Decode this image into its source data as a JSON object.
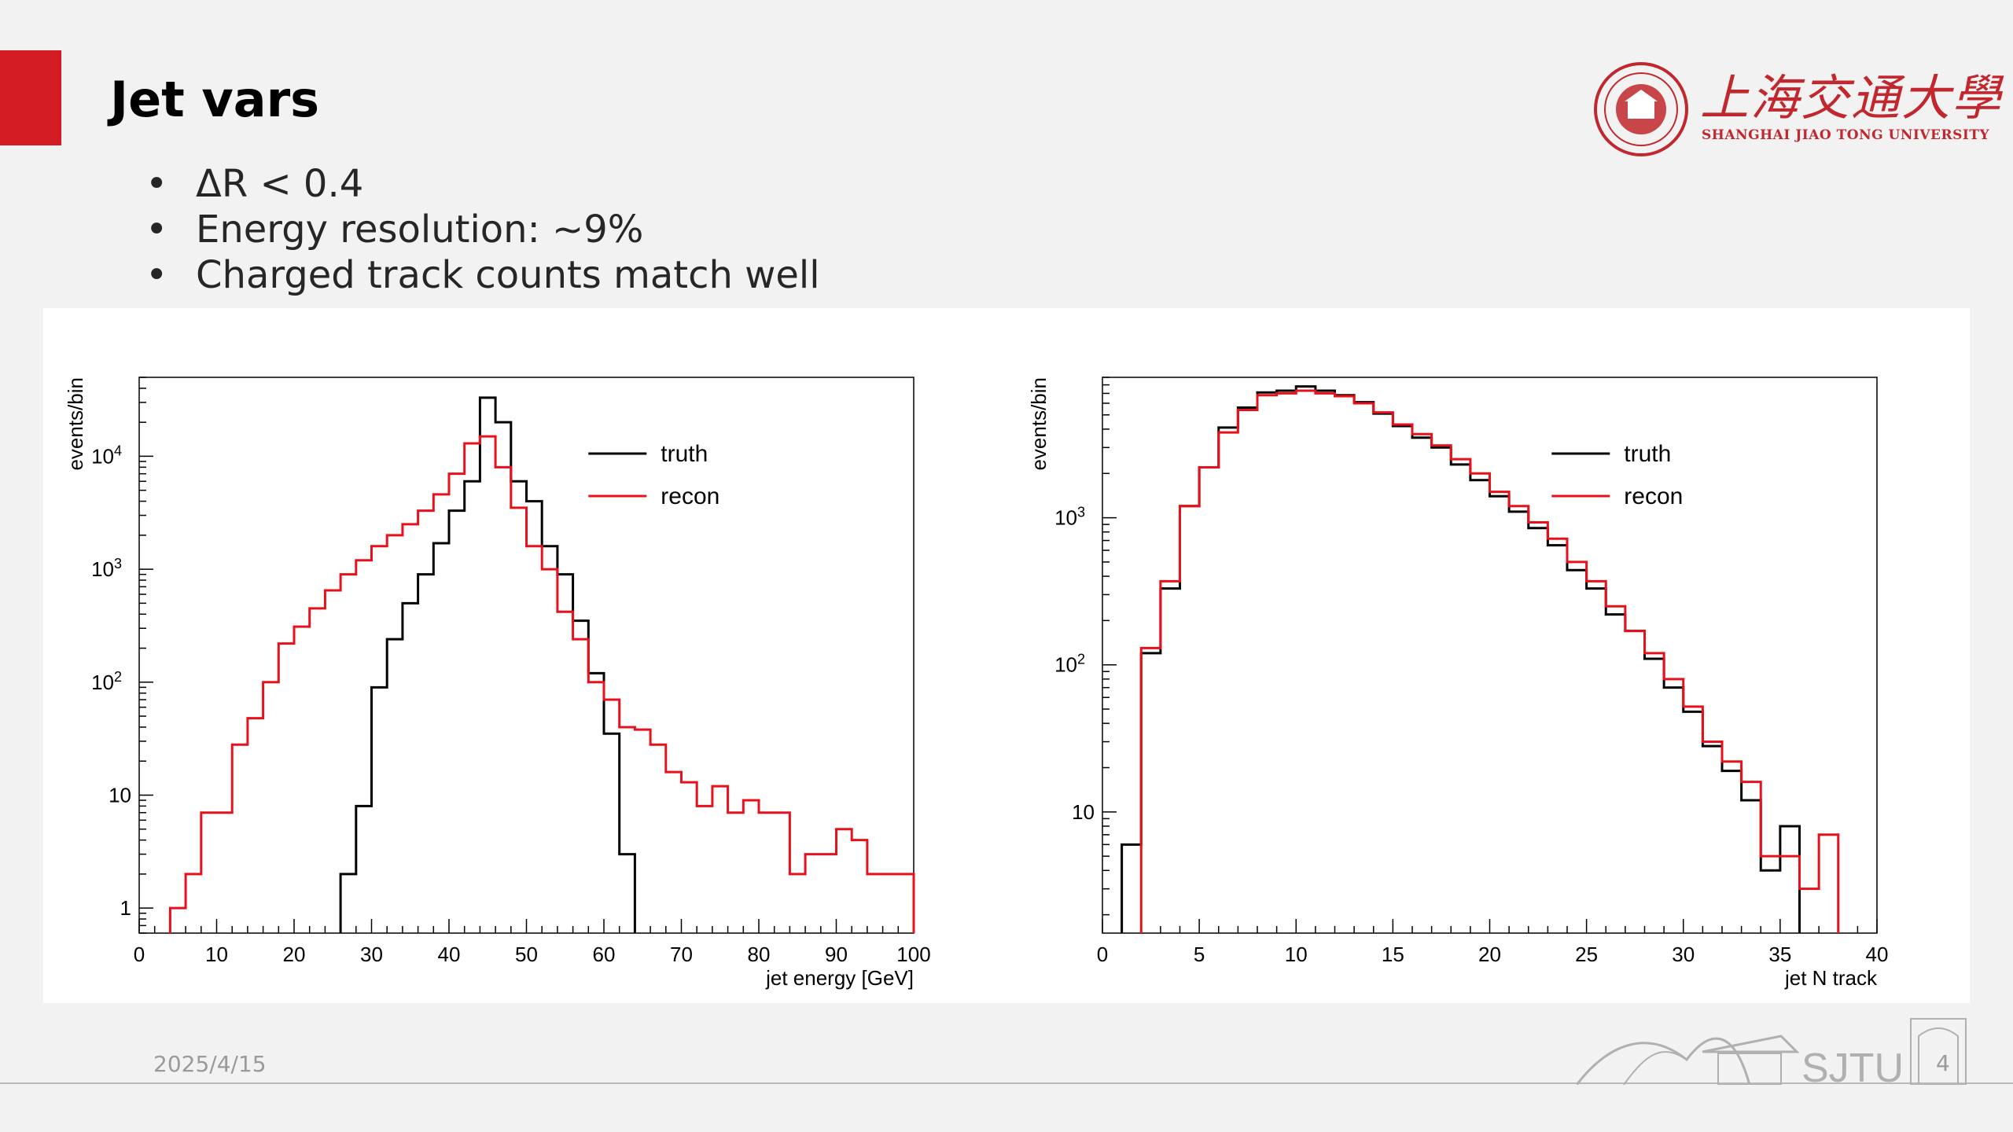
{
  "slide": {
    "title": "Jet vars",
    "bullets": [
      "ΔR < 0.4",
      "Energy resolution: ~9%",
      "Charged track counts match well"
    ],
    "date": "2025/4/15",
    "page_number": "4",
    "accent_color": "#d41c24"
  },
  "logo": {
    "name_cn": "上海交通大學",
    "name_en": "SHANGHAI JIAO TONG UNIVERSITY",
    "footer_text": "SJTU",
    "color": "#c1272d"
  },
  "chart_data": [
    {
      "type": "histogram",
      "xlabel": "jet energy [GeV]",
      "ylabel": "events/bin",
      "yscale": "log",
      "xlim": [
        0,
        100
      ],
      "ylim": [
        0.6,
        50000
      ],
      "x_ticks": [
        0,
        10,
        20,
        30,
        40,
        50,
        60,
        70,
        80,
        90,
        100
      ],
      "y_ticks": [
        {
          "value": 1,
          "label": "1"
        },
        {
          "value": 10,
          "label": "10"
        },
        {
          "value": 100,
          "label": "10",
          "sup": "2"
        },
        {
          "value": 1000,
          "label": "10",
          "sup": "3"
        },
        {
          "value": 10000,
          "label": "10",
          "sup": "4"
        }
      ],
      "bin_width": 2,
      "bin_start": 0,
      "legend": {
        "position": "top-right",
        "entries": [
          "truth",
          "recon"
        ]
      },
      "series": [
        {
          "name": "truth",
          "color": "#000000",
          "values": [
            0,
            0,
            0,
            0,
            0,
            0,
            0,
            0,
            0,
            0,
            0,
            0,
            0,
            2,
            8,
            90,
            240,
            500,
            900,
            1700,
            3300,
            6000,
            33000,
            20000,
            6000,
            4000,
            1600,
            900,
            350,
            120,
            35,
            3,
            0,
            0,
            0,
            0,
            0,
            0,
            0,
            0,
            0,
            0,
            0,
            0,
            0,
            0,
            0,
            0,
            0,
            0
          ]
        },
        {
          "name": "recon",
          "color": "#e8111b",
          "values": [
            0,
            0,
            1,
            2,
            7,
            7,
            28,
            48,
            100,
            220,
            310,
            450,
            650,
            900,
            1200,
            1600,
            2000,
            2500,
            3300,
            4600,
            7000,
            13000,
            15000,
            8000,
            3500,
            1600,
            1000,
            420,
            240,
            100,
            70,
            40,
            38,
            28,
            16,
            13,
            8,
            12,
            7,
            9,
            7,
            7,
            2,
            3,
            3,
            5,
            4,
            2,
            2,
            2
          ]
        }
      ]
    },
    {
      "type": "histogram",
      "xlabel": "jet N track",
      "ylabel": "events/bin",
      "yscale": "log",
      "xlim": [
        0,
        40
      ],
      "ylim": [
        1.5,
        9000
      ],
      "x_ticks": [
        0,
        5,
        10,
        15,
        20,
        25,
        30,
        35,
        40
      ],
      "y_ticks": [
        {
          "value": 10,
          "label": "10"
        },
        {
          "value": 100,
          "label": "10",
          "sup": "2"
        },
        {
          "value": 1000,
          "label": "10",
          "sup": "3"
        }
      ],
      "bin_width": 1,
      "bin_start": 0,
      "legend": {
        "position": "top-right",
        "entries": [
          "truth",
          "recon"
        ]
      },
      "series": [
        {
          "name": "truth",
          "color": "#000000",
          "values": [
            0,
            6,
            120,
            330,
            1200,
            2200,
            4100,
            5600,
            7100,
            7300,
            7800,
            7300,
            6800,
            6100,
            5100,
            4200,
            3500,
            3000,
            2300,
            1800,
            1400,
            1100,
            850,
            650,
            440,
            330,
            220,
            170,
            110,
            70,
            48,
            28,
            19,
            12,
            4,
            8,
            0,
            0,
            0,
            0
          ]
        },
        {
          "name": "recon",
          "color": "#e8111b",
          "values": [
            0,
            0,
            130,
            370,
            1200,
            2200,
            3800,
            5400,
            6800,
            7000,
            7300,
            7000,
            6700,
            6000,
            5200,
            4300,
            3700,
            3100,
            2500,
            2000,
            1500,
            1200,
            930,
            720,
            500,
            370,
            250,
            170,
            120,
            80,
            52,
            30,
            22,
            16,
            5,
            5,
            3,
            7,
            0,
            0
          ]
        }
      ]
    }
  ]
}
